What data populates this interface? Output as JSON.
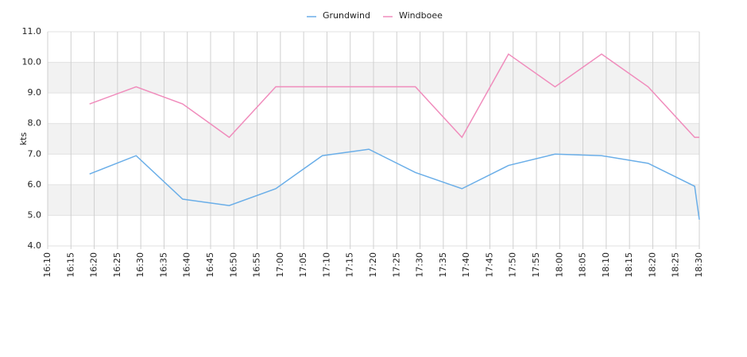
{
  "chart_data": {
    "type": "line",
    "y_label": "kts",
    "xlim": [
      "16:10",
      "18:30"
    ],
    "xticks": [
      "16:10",
      "16:15",
      "16:20",
      "16:25",
      "16:30",
      "16:35",
      "16:40",
      "16:45",
      "16:50",
      "16:55",
      "17:00",
      "17:05",
      "17:10",
      "17:15",
      "17:20",
      "17:25",
      "17:30",
      "17:35",
      "17:40",
      "17:45",
      "17:50",
      "17:55",
      "18:00",
      "18:05",
      "18:10",
      "18:15",
      "18:20",
      "18:25",
      "18:30"
    ],
    "ylim": [
      4,
      11
    ],
    "yticks": [
      {
        "value": 4,
        "label": "4.0"
      },
      {
        "value": 5,
        "label": "5.0"
      },
      {
        "value": 6,
        "label": "6.0"
      },
      {
        "value": 7,
        "label": "7.0"
      },
      {
        "value": 8,
        "label": "8.0"
      },
      {
        "value": 9,
        "label": "9.0"
      },
      {
        "value": 10,
        "label": "10.0"
      },
      {
        "value": 11,
        "label": "11.0"
      }
    ],
    "grid": true,
    "legend": "top",
    "x": [
      "16:19",
      "16:29",
      "16:39",
      "16:49",
      "16:59",
      "17:09",
      "17:19",
      "17:29",
      "17:39",
      "17:49",
      "17:59",
      "18:09",
      "18:19",
      "18:29",
      "18:30"
    ],
    "series": [
      {
        "name": "Grundwind",
        "color": "#6aaee8",
        "values": [
          6.35,
          6.95,
          5.53,
          5.32,
          5.87,
          6.95,
          7.16,
          6.4,
          5.87,
          6.63,
          7.0,
          6.95,
          6.7,
          5.95,
          4.86
        ]
      },
      {
        "name": "Windboee",
        "color": "#f08cbc",
        "values": [
          8.64,
          9.2,
          8.64,
          7.55,
          9.2,
          9.2,
          9.2,
          9.2,
          7.55,
          10.27,
          9.2,
          10.27,
          9.2,
          7.55,
          7.55
        ]
      }
    ]
  }
}
